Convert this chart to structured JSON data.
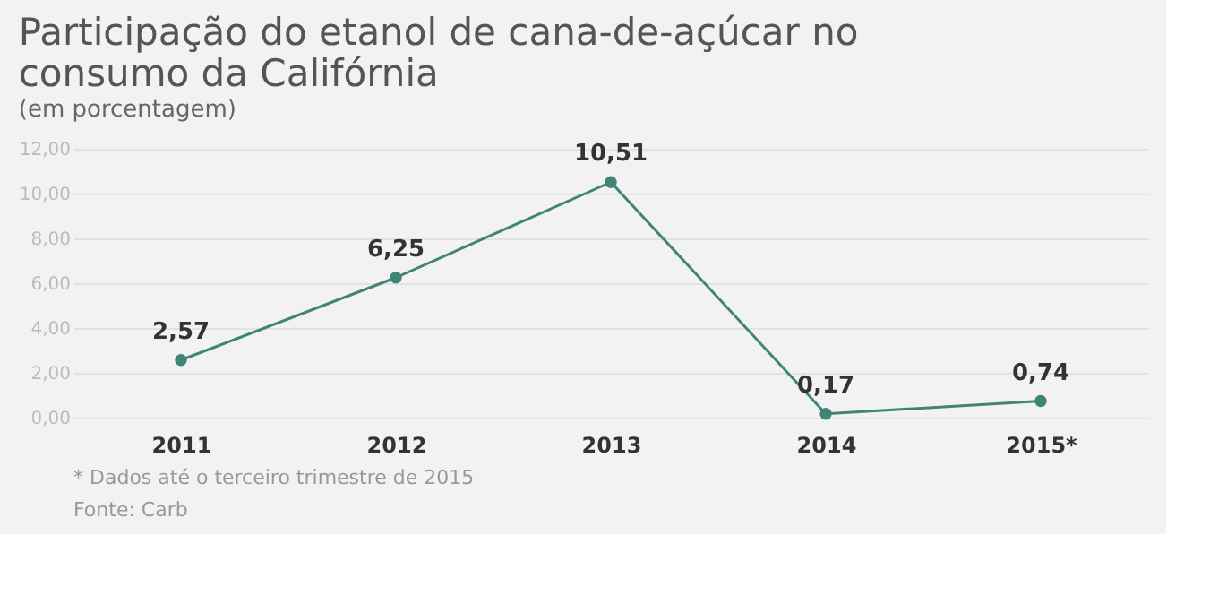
{
  "chart_data": {
    "type": "line",
    "title": "Participação do etanol de cana-de-açúcar no consumo da Califórnia",
    "subtitle": "(em porcentagem)",
    "categories": [
      "2011",
      "2012",
      "2013",
      "2014",
      "2015*"
    ],
    "series": [
      {
        "color": "#3f8577",
        "values": [
          2.57,
          6.25,
          10.51,
          0.17,
          0.74
        ],
        "value_labels": [
          "2,57",
          "6,25",
          "10,51",
          "0,17",
          "0,74"
        ]
      }
    ],
    "ylim": [
      0,
      12
    ],
    "yticks": [
      {
        "value": 0,
        "label": "0,00"
      },
      {
        "value": 2,
        "label": "2,00"
      },
      {
        "value": 4,
        "label": "4,00"
      },
      {
        "value": 6,
        "label": "6,00"
      },
      {
        "value": 8,
        "label": "8,00"
      },
      {
        "value": 10,
        "label": "10,00"
      },
      {
        "value": 12,
        "label": "12,00"
      }
    ],
    "grid": "y",
    "marker": "circle",
    "line_style": "solid",
    "annotations": [
      "* Dados até o terceiro trimestre de 2015",
      "Fonte: Carb"
    ]
  }
}
